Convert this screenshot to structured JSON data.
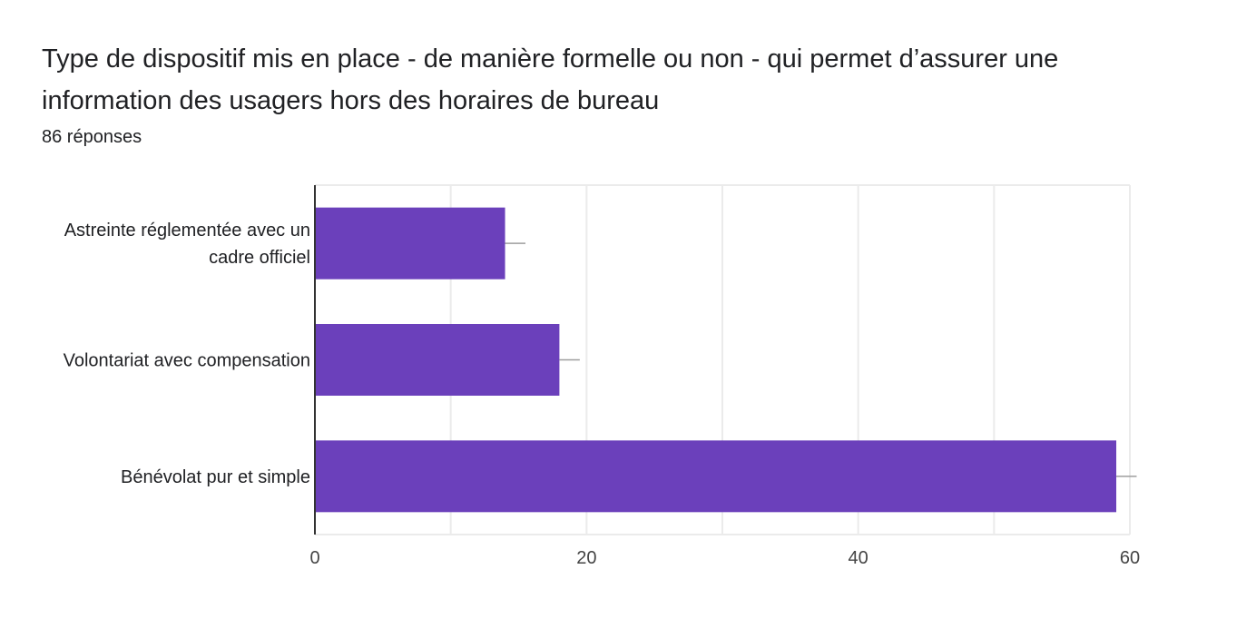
{
  "header": {
    "title": "Type de dispositif mis en place - de manière formelle ou non - qui permet d’assurer une information des usagers hors des horaires de bureau",
    "response_count": "86 réponses"
  },
  "colors": {
    "bar": "#6b40bb",
    "grid": "#ebebeb",
    "axis": "#333333",
    "error_bar": "#9e9e9e"
  },
  "chart_data": {
    "type": "bar",
    "orientation": "horizontal",
    "categories": [
      [
        "Astreinte réglementée avec un",
        "cadre officiel"
      ],
      [
        "Volontariat avec compensation"
      ],
      [
        "Bénévolat pur et simple"
      ]
    ],
    "values": [
      14,
      18,
      59
    ],
    "error_bar_upper": [
      15.5,
      19.5,
      60.5
    ],
    "xlim": [
      0,
      60
    ],
    "xticks": [
      0,
      20,
      40,
      60
    ],
    "minor_grid": [
      10,
      30,
      50
    ],
    "grid": true,
    "legend": "none",
    "xlabel": "",
    "ylabel": ""
  }
}
